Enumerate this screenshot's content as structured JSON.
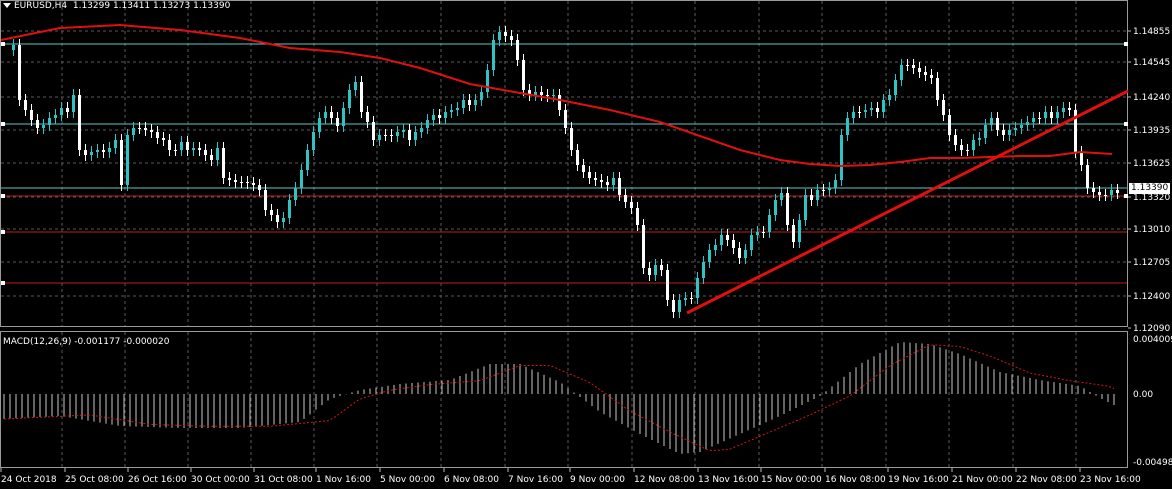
{
  "header": {
    "symbol": "EURUSD,H4",
    "ohlc": "1.13299 1.13411 1.13273 1.13390"
  },
  "price_axis": {
    "labels": [
      "1.14855",
      "1.14545",
      "1.14240",
      "1.13935",
      "1.13625",
      "1.13320",
      "1.13010",
      "1.12705",
      "1.12400",
      "1.12090"
    ],
    "current_price_label": "1.13390"
  },
  "macd": {
    "header": "MACD(12,26,9) -0.001177 -0.000020",
    "axis_labels": [
      "0.004009",
      "0.00",
      "-0.00498"
    ]
  },
  "time_axis": {
    "labels": [
      "24 Oct 2018",
      "25 Oct 08:00",
      "26 Oct 16:00",
      "30 Oct 00:00",
      "31 Oct 08:00",
      "1 Nov 16:00",
      "5 Nov 00:00",
      "6 Nov 08:00",
      "7 Nov 16:00",
      "9 Nov 00:00",
      "12 Nov 08:00",
      "13 Nov 16:00",
      "15 Nov 00:00",
      "16 Nov 08:00",
      "19 Nov 16:00",
      "21 Nov 00:00",
      "22 Nov 08:00",
      "23 Nov 16:00"
    ]
  },
  "colors": {
    "background": "#000000",
    "grid": "#6b6b6b",
    "candle_bull": "#2fc4c4",
    "candle_bear": "#ffffff",
    "moving_average": "#e01010",
    "trendline": "#e01010",
    "support_lines": "#c21a1a",
    "aqua_lines": "#5fc9c4",
    "macd_histogram": "#c8c8c8",
    "macd_signal": "#d01616"
  }
}
